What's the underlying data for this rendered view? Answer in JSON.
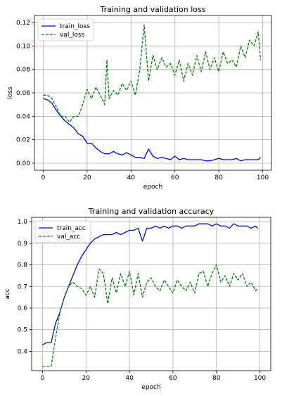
{
  "chart_data": [
    {
      "type": "line",
      "title": "Training and validation loss",
      "xlabel": "epoch",
      "ylabel": "loss",
      "xlim": [
        -4,
        104
      ],
      "ylim": [
        -0.006,
        0.126
      ],
      "xticks": [
        0,
        20,
        40,
        60,
        80,
        100
      ],
      "yticks": [
        0.0,
        0.02,
        0.04,
        0.06,
        0.08,
        0.1,
        0.12
      ],
      "ytick_decimals": 2,
      "grid": true,
      "legend": "upper-left",
      "series": [
        {
          "name": "train_loss",
          "color": "#0000ff",
          "dash": "solid",
          "x": [
            0,
            2,
            4,
            6,
            8,
            10,
            12,
            14,
            16,
            18,
            20,
            22,
            24,
            26,
            28,
            30,
            32,
            34,
            36,
            38,
            40,
            42,
            44,
            46,
            48,
            50,
            52,
            54,
            56,
            58,
            60,
            62,
            64,
            66,
            68,
            70,
            72,
            74,
            76,
            78,
            80,
            82,
            84,
            86,
            88,
            90,
            92,
            94,
            96,
            98,
            99
          ],
          "y": [
            0.055,
            0.054,
            0.051,
            0.045,
            0.04,
            0.036,
            0.033,
            0.03,
            0.025,
            0.023,
            0.017,
            0.017,
            0.013,
            0.01,
            0.008,
            0.008,
            0.01,
            0.008,
            0.007,
            0.009,
            0.007,
            0.005,
            0.005,
            0.004,
            0.012,
            0.006,
            0.004,
            0.005,
            0.004,
            0.003,
            0.006,
            0.003,
            0.004,
            0.003,
            0.003,
            0.003,
            0.003,
            0.002,
            0.002,
            0.003,
            0.004,
            0.003,
            0.003,
            0.003,
            0.004,
            0.002,
            0.003,
            0.003,
            0.003,
            0.003,
            0.005
          ]
        },
        {
          "name": "val_loss",
          "color": "#008000",
          "dash": "dashed",
          "x": [
            0,
            2,
            4,
            6,
            8,
            10,
            12,
            14,
            16,
            18,
            20,
            22,
            24,
            26,
            28,
            29,
            30,
            32,
            34,
            36,
            38,
            40,
            42,
            44,
            46,
            48,
            50,
            52,
            54,
            56,
            58,
            60,
            62,
            64,
            66,
            68,
            70,
            72,
            74,
            76,
            78,
            80,
            82,
            84,
            86,
            88,
            90,
            92,
            94,
            96,
            98,
            99
          ],
          "y": [
            0.058,
            0.058,
            0.055,
            0.048,
            0.04,
            0.04,
            0.035,
            0.04,
            0.04,
            0.05,
            0.063,
            0.055,
            0.065,
            0.058,
            0.05,
            0.088,
            0.055,
            0.062,
            0.058,
            0.068,
            0.062,
            0.07,
            0.058,
            0.08,
            0.118,
            0.07,
            0.092,
            0.08,
            0.09,
            0.082,
            0.085,
            0.075,
            0.088,
            0.07,
            0.085,
            0.075,
            0.092,
            0.078,
            0.095,
            0.08,
            0.09,
            0.078,
            0.095,
            0.085,
            0.088,
            0.082,
            0.1,
            0.09,
            0.105,
            0.1,
            0.112,
            0.088
          ]
        }
      ]
    },
    {
      "type": "line",
      "title": "Training and validation accuracy",
      "xlabel": "epoch",
      "ylabel": "acc",
      "xlim": [
        -5,
        105
      ],
      "ylim": [
        0.31,
        1.02
      ],
      "xticks": [
        0,
        20,
        40,
        60,
        80,
        100
      ],
      "yticks": [
        0.4,
        0.5,
        0.6,
        0.7,
        0.8,
        0.9,
        1.0
      ],
      "ytick_decimals": 1,
      "grid": true,
      "legend": "upper-left",
      "series": [
        {
          "name": "train_acc",
          "color": "#0000ff",
          "dash": "solid",
          "x": [
            0,
            2,
            4,
            6,
            8,
            10,
            12,
            14,
            16,
            18,
            20,
            22,
            24,
            26,
            28,
            30,
            32,
            34,
            36,
            38,
            40,
            42,
            44,
            46,
            48,
            50,
            52,
            54,
            56,
            58,
            60,
            62,
            64,
            66,
            68,
            70,
            72,
            74,
            76,
            78,
            80,
            82,
            84,
            86,
            88,
            90,
            92,
            94,
            96,
            98,
            99
          ],
          "y": [
            0.43,
            0.44,
            0.44,
            0.53,
            0.58,
            0.65,
            0.7,
            0.75,
            0.8,
            0.84,
            0.87,
            0.9,
            0.92,
            0.93,
            0.94,
            0.94,
            0.94,
            0.95,
            0.94,
            0.95,
            0.96,
            0.96,
            0.97,
            0.91,
            0.97,
            0.97,
            0.98,
            0.97,
            0.98,
            0.97,
            0.98,
            0.98,
            0.97,
            0.98,
            0.98,
            0.98,
            0.99,
            0.99,
            0.99,
            0.98,
            0.99,
            0.98,
            0.98,
            0.97,
            0.99,
            0.98,
            0.98,
            0.98,
            0.97,
            0.98,
            0.97
          ]
        },
        {
          "name": "val_acc",
          "color": "#008000",
          "dash": "dashed",
          "x": [
            0,
            2,
            4,
            6,
            8,
            10,
            12,
            14,
            16,
            18,
            20,
            22,
            24,
            26,
            28,
            30,
            32,
            34,
            36,
            38,
            40,
            42,
            44,
            46,
            48,
            50,
            52,
            54,
            56,
            58,
            60,
            62,
            64,
            66,
            68,
            70,
            72,
            74,
            76,
            78,
            80,
            82,
            84,
            86,
            88,
            90,
            92,
            94,
            96,
            98,
            99
          ],
          "y": [
            0.33,
            0.33,
            0.33,
            0.46,
            0.58,
            0.65,
            0.7,
            0.72,
            0.7,
            0.69,
            0.66,
            0.7,
            0.65,
            0.78,
            0.76,
            0.62,
            0.74,
            0.67,
            0.76,
            0.7,
            0.77,
            0.66,
            0.76,
            0.65,
            0.72,
            0.74,
            0.7,
            0.68,
            0.73,
            0.7,
            0.67,
            0.73,
            0.7,
            0.68,
            0.72,
            0.67,
            0.76,
            0.77,
            0.7,
            0.76,
            0.8,
            0.72,
            0.75,
            0.7,
            0.76,
            0.73,
            0.76,
            0.7,
            0.72,
            0.68,
            0.69
          ]
        }
      ]
    }
  ]
}
